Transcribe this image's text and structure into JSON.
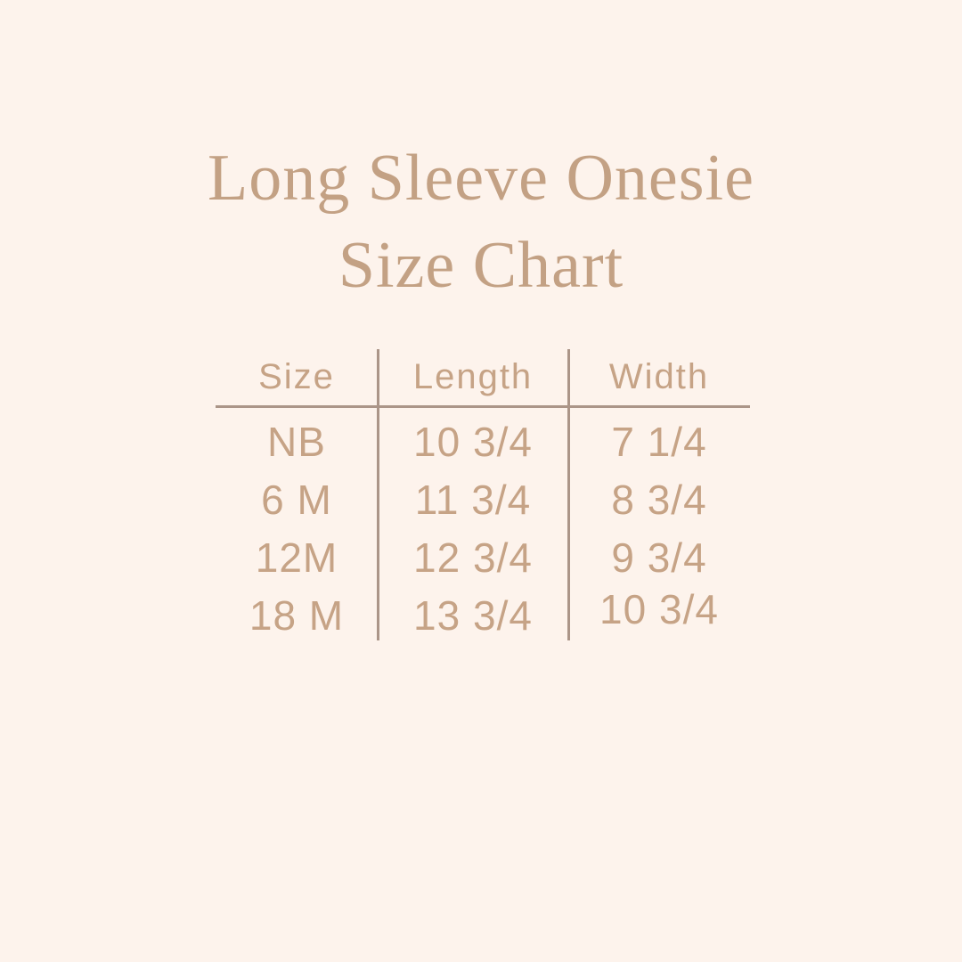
{
  "page": {
    "background_color": "#fdf3ec",
    "title_color": "#c3a184",
    "table_text_color": "#c6a386",
    "divider_color": "#ab9588"
  },
  "title": {
    "line1": "Long Sleeve Onesie",
    "line2": "Size Chart"
  },
  "table": {
    "headers": [
      "Size",
      "Length",
      "Width"
    ],
    "rows": [
      {
        "size": "NB",
        "length": "10 3/4",
        "width": "7 1/4"
      },
      {
        "size": "6 M",
        "length": "11 3/4",
        "width": "8 3/4"
      },
      {
        "size": "12M",
        "length": "12 3/4",
        "width": "9 3/4"
      },
      {
        "size": "18 M",
        "length": "13 3/4",
        "width": "10 3/4"
      }
    ]
  },
  "chart_data": {
    "type": "table",
    "title": "Long Sleeve Onesie Size Chart",
    "columns": [
      "Size",
      "Length",
      "Width"
    ],
    "rows": [
      [
        "NB",
        "10 3/4",
        "7 1/4"
      ],
      [
        "6 M",
        "11 3/4",
        "8 3/4"
      ],
      [
        "12M",
        "12 3/4",
        "9 3/4"
      ],
      [
        "18 M",
        "13 3/4",
        "10 3/4"
      ]
    ],
    "units": "inches (implied)",
    "notes": "Static size-chart graphic; columns separated by vertical rules, header separated by horizontal rule"
  }
}
